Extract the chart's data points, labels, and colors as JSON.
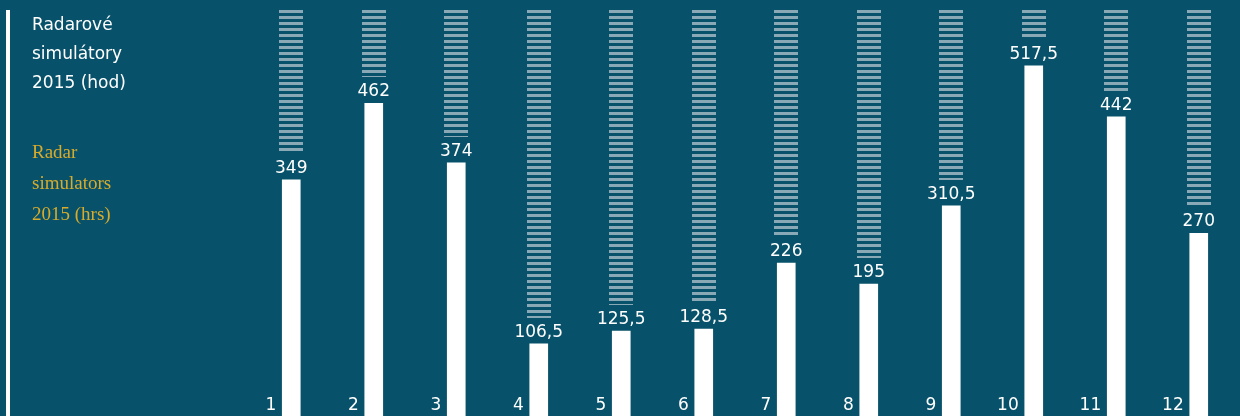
{
  "chart_data": {
    "type": "bar",
    "title": "Radarové simulátory 2015 (hod)",
    "subtitle": "Radar simulators 2015 (hrs)",
    "categories": [
      "1",
      "2",
      "3",
      "4",
      "5",
      "6",
      "7",
      "8",
      "9",
      "10",
      "11",
      "12"
    ],
    "values": [
      349,
      462,
      374,
      106.5,
      125.5,
      128.5,
      226,
      195,
      310.5,
      517.5,
      442,
      270
    ],
    "value_labels": [
      "349",
      "462",
      "374",
      "106,5",
      "125,5",
      "128,5",
      "226",
      "195",
      "310,5",
      "517,5",
      "442",
      "270"
    ],
    "color": "#ffffff",
    "legend": false
  }
}
